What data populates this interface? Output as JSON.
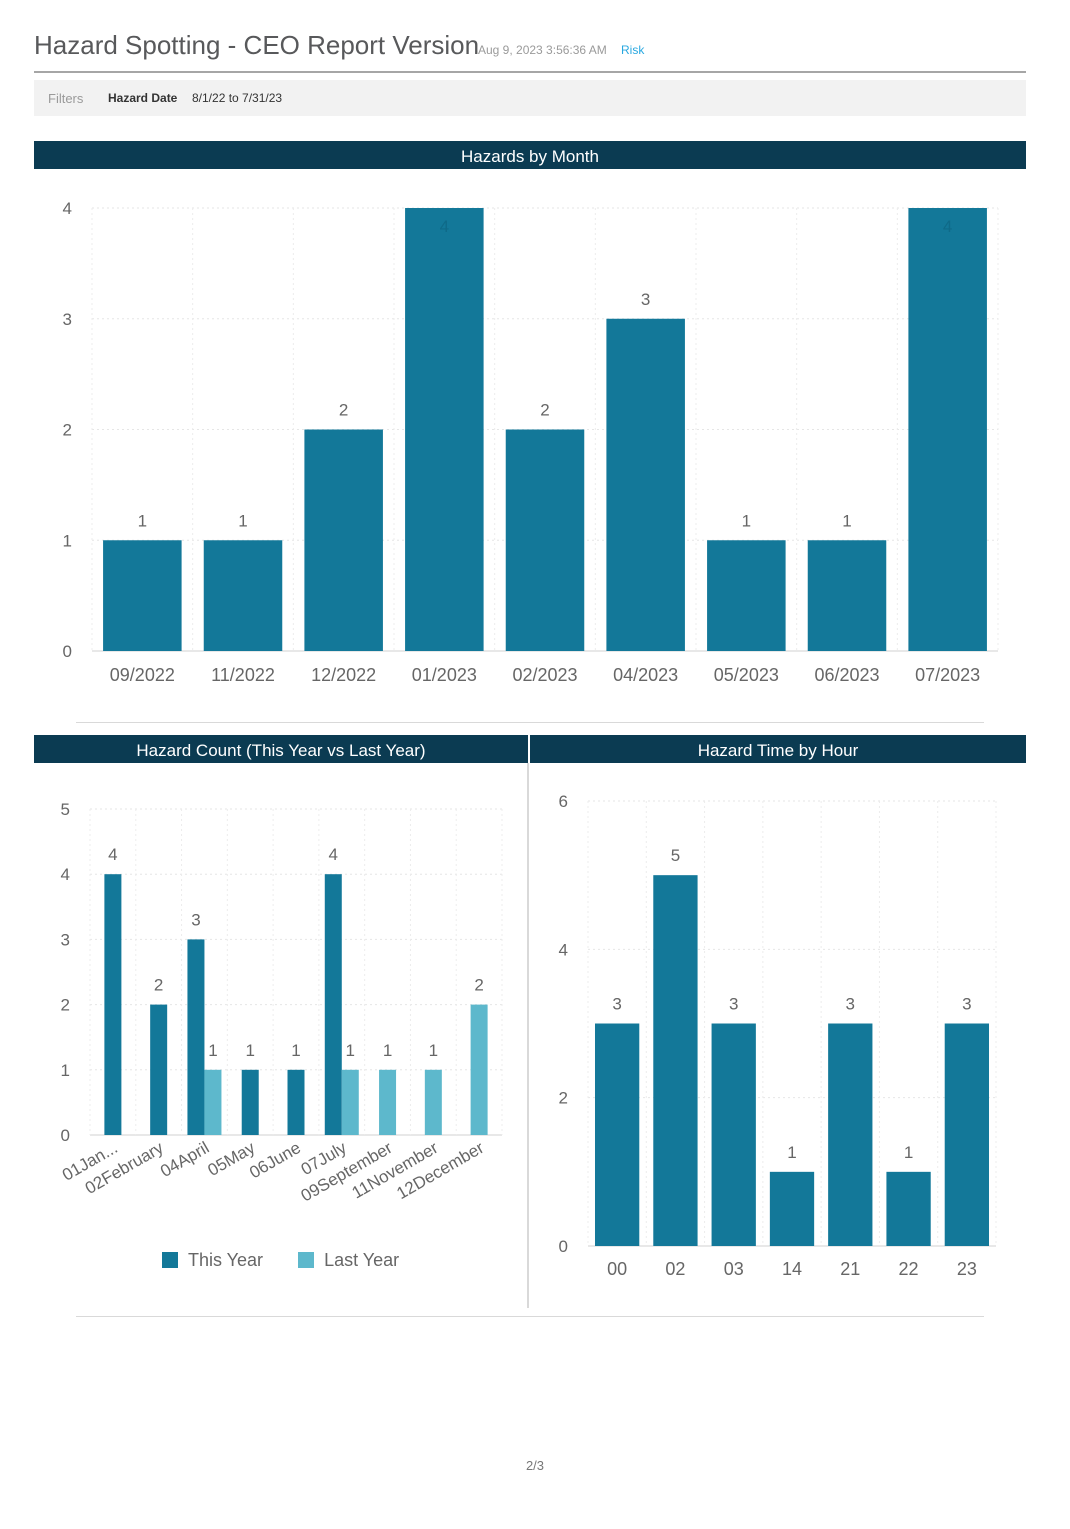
{
  "header": {
    "title": "Hazard Spotting - CEO Report Version",
    "timestamp": "Aug 9, 2023 3:56:36 AM",
    "link": "Risk"
  },
  "filters": {
    "label": "Filters",
    "name": "Hazard Date",
    "value": "8/1/22 to 7/31/23"
  },
  "colors": {
    "header_bar": "#0b3b52",
    "this_year": "#137899",
    "last_year": "#5db8cc",
    "bar": "#137899"
  },
  "footer": {
    "page": "2/3"
  },
  "chart_data": [
    {
      "type": "bar",
      "title": "Hazards by Month",
      "categories": [
        "09/2022",
        "11/2022",
        "12/2022",
        "01/2023",
        "02/2023",
        "04/2023",
        "05/2023",
        "06/2023",
        "07/2023"
      ],
      "values": [
        1,
        1,
        2,
        4,
        2,
        3,
        1,
        1,
        4
      ],
      "ylim": [
        0,
        4
      ],
      "yticks": [
        0,
        1,
        2,
        3,
        4
      ],
      "grid": true,
      "data_labels": true
    },
    {
      "type": "bar",
      "title": "Hazard Count (This Year vs Last Year)",
      "categories": [
        "01Jan...",
        "02February",
        "04April",
        "05May",
        "06June",
        "07July",
        "09September",
        "11November",
        "12December"
      ],
      "series": [
        {
          "name": "This Year",
          "values": [
            4,
            2,
            3,
            1,
            1,
            4,
            null,
            null,
            null
          ]
        },
        {
          "name": "Last Year",
          "values": [
            null,
            null,
            1,
            null,
            null,
            1,
            1,
            1,
            2
          ]
        }
      ],
      "ylim": [
        0,
        5
      ],
      "yticks": [
        0,
        1,
        2,
        3,
        4,
        5
      ],
      "legend": "bottom",
      "grid": true,
      "data_labels": true
    },
    {
      "type": "bar",
      "title": "Hazard Time by Hour",
      "categories": [
        "00",
        "02",
        "03",
        "14",
        "21",
        "22",
        "23"
      ],
      "values": [
        3,
        5,
        3,
        1,
        3,
        1,
        3
      ],
      "ylim": [
        0,
        6
      ],
      "yticks": [
        0,
        2,
        4,
        6
      ],
      "grid": true,
      "data_labels": true
    }
  ]
}
